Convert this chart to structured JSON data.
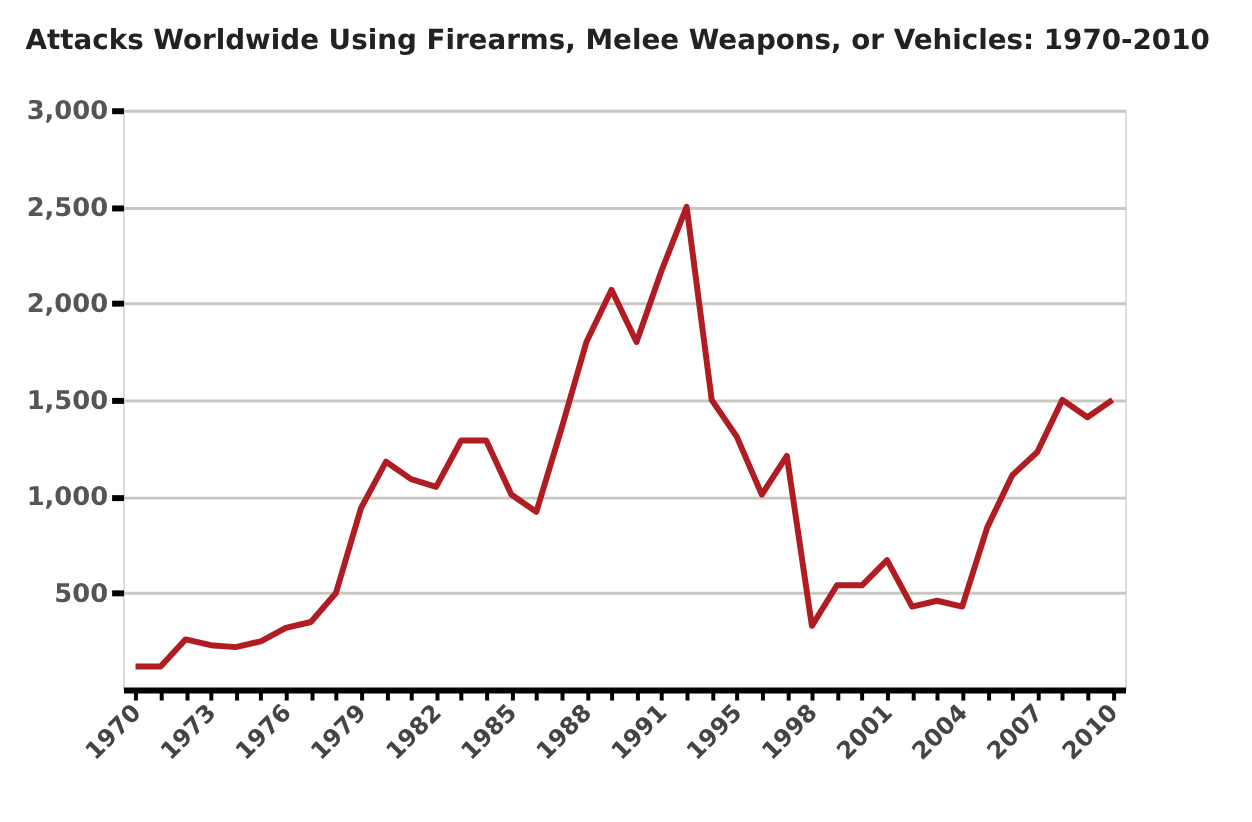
{
  "chart_data": {
    "type": "line",
    "title": "Attacks Worldwide Using Firearms, Melee Weapons, or Vehicles: 1970-2010",
    "categories": [
      "1970",
      null,
      null,
      "1973",
      null,
      null,
      "1976",
      null,
      null,
      "1979",
      null,
      null,
      "1982",
      null,
      null,
      "1985",
      null,
      null,
      "1988",
      null,
      null,
      "1991",
      null,
      null,
      "1995",
      null,
      null,
      "1998",
      null,
      null,
      "2001",
      null,
      null,
      "2004",
      null,
      null,
      "2007",
      null,
      null,
      "2010"
    ],
    "series": [
      {
        "color": "#b01c22",
        "values": [
          120,
          120,
          260,
          230,
          220,
          250,
          320,
          350,
          500,
          940,
          1180,
          1090,
          1050,
          1290,
          1290,
          1010,
          920,
          1350,
          1800,
          2070,
          1800,
          2170,
          2500,
          1500,
          1310,
          1010,
          1210,
          330,
          540,
          540,
          670,
          430,
          460,
          430,
          840,
          1110,
          1230,
          1500,
          1410,
          1500
        ]
      }
    ],
    "ylim": [
      0,
      3000
    ],
    "yticks": [
      {
        "value": 500,
        "label": "500"
      },
      {
        "value": 1000,
        "label": "1,000"
      },
      {
        "value": 1500,
        "label": "1,500"
      },
      {
        "value": 2000,
        "label": "2,000"
      },
      {
        "value": 2500,
        "label": "2,500"
      },
      {
        "value": 3000,
        "label": "3,000"
      }
    ],
    "grid": "y",
    "line_style": "solid"
  }
}
